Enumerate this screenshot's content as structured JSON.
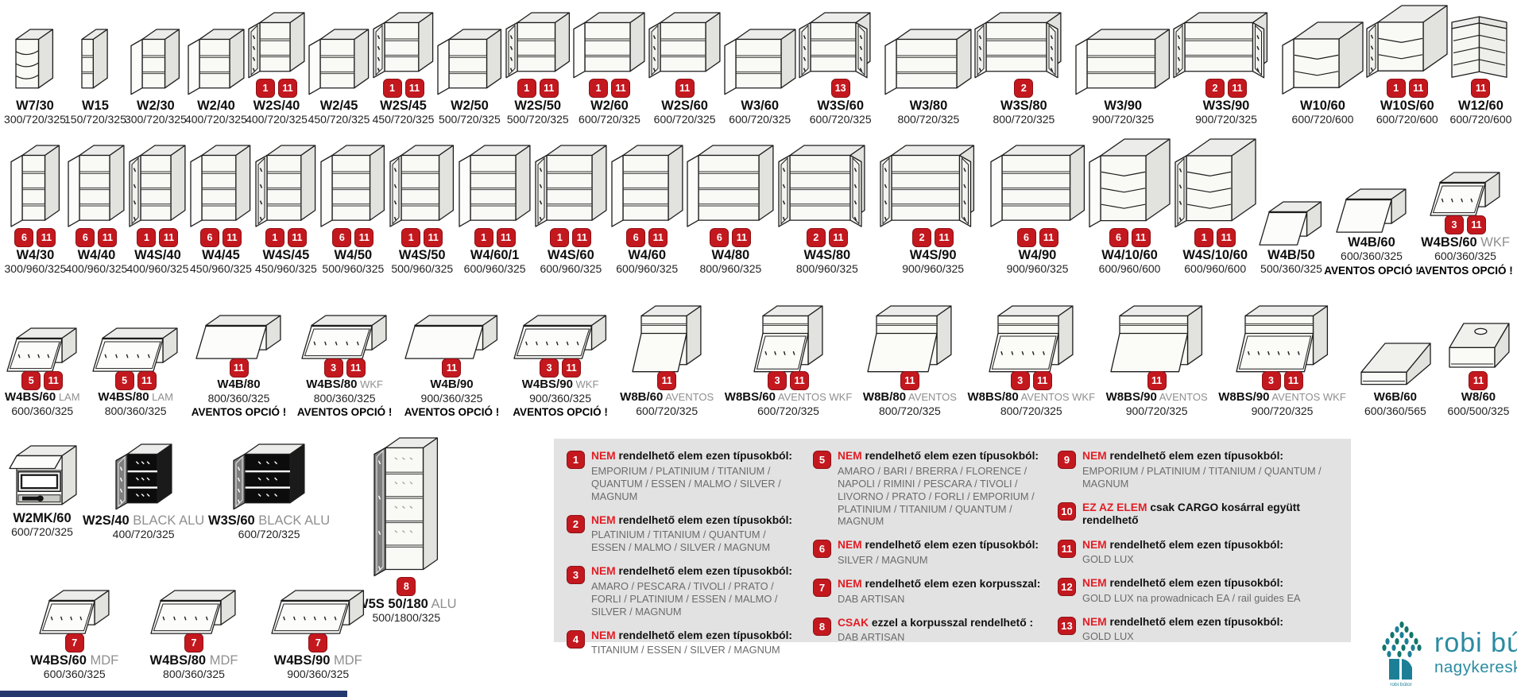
{
  "colors": {
    "badge_red": "#c4181f",
    "accent_red": "#e21d25",
    "legend_bg": "#e2e2e2",
    "logo_teal": "#2a8ba1",
    "footer_navy": "#25386e"
  },
  "rows": [
    {
      "id": "row1",
      "items": [
        {
          "code": "W7/30",
          "suffix": "",
          "dims": "300/720/325",
          "badges": [],
          "shape": "corner-open",
          "note": ""
        },
        {
          "code": "W15",
          "suffix": "",
          "dims": "150/720/325",
          "badges": [],
          "shape": "open",
          "note": ""
        },
        {
          "code": "W2/30",
          "suffix": "",
          "dims": "300/720/325",
          "badges": [],
          "shape": "door",
          "note": ""
        },
        {
          "code": "W2/40",
          "suffix": "",
          "dims": "400/720/325",
          "badges": [],
          "shape": "door",
          "note": ""
        },
        {
          "code": "W2S/40",
          "suffix": "",
          "dims": "400/720/325",
          "badges": [
            "1",
            "11"
          ],
          "shape": "glass",
          "note": ""
        },
        {
          "code": "W2/45",
          "suffix": "",
          "dims": "450/720/325",
          "badges": [],
          "shape": "door",
          "note": ""
        },
        {
          "code": "W2S/45",
          "suffix": "",
          "dims": "450/720/325",
          "badges": [
            "1",
            "11"
          ],
          "shape": "glass",
          "note": ""
        },
        {
          "code": "W2/50",
          "suffix": "",
          "dims": "500/720/325",
          "badges": [],
          "shape": "door",
          "note": ""
        },
        {
          "code": "W2S/50",
          "suffix": "",
          "dims": "500/720/325",
          "badges": [
            "1",
            "11"
          ],
          "shape": "glass",
          "note": ""
        },
        {
          "code": "W2/60",
          "suffix": "",
          "dims": "600/720/325",
          "badges": [
            "1",
            "11"
          ],
          "shape": "door",
          "note": ""
        },
        {
          "code": "W2S/60",
          "suffix": "",
          "dims": "600/720/325",
          "badges": [
            "11"
          ],
          "shape": "glass",
          "note": ""
        },
        {
          "code": "W3/60",
          "suffix": "",
          "dims": "600/720/325",
          "badges": [],
          "shape": "door",
          "note": ""
        },
        {
          "code": "W3S/60",
          "suffix": "",
          "dims": "600/720/325",
          "badges": [
            "13"
          ],
          "shape": "glass2",
          "note": ""
        },
        {
          "code": "W3/80",
          "suffix": "",
          "dims": "800/720/325",
          "badges": [],
          "shape": "door",
          "note": ""
        },
        {
          "code": "W3S/80",
          "suffix": "",
          "dims": "800/720/325",
          "badges": [
            "2"
          ],
          "shape": "glass2",
          "note": ""
        },
        {
          "code": "W3/90",
          "suffix": "",
          "dims": "900/720/325",
          "badges": [],
          "shape": "door",
          "note": ""
        },
        {
          "code": "W3S/90",
          "suffix": "",
          "dims": "900/720/325",
          "badges": [
            "2",
            "11"
          ],
          "shape": "glass2",
          "note": ""
        },
        {
          "code": "W10/60",
          "suffix": "",
          "dims": "600/720/600",
          "badges": [],
          "shape": "corner-door",
          "note": ""
        },
        {
          "code": "W10S/60",
          "suffix": "",
          "dims": "600/720/600",
          "badges": [
            "1",
            "11"
          ],
          "shape": "corner-glass",
          "note": ""
        },
        {
          "code": "W12/60",
          "suffix": "",
          "dims": "600/720/600",
          "badges": [
            "11"
          ],
          "shape": "corner-L",
          "note": ""
        }
      ]
    },
    {
      "id": "row2",
      "items": [
        {
          "code": "W4/30",
          "suffix": "",
          "dims": "300/960/325",
          "badges": [
            "6",
            "11"
          ],
          "shape": "door",
          "note": ""
        },
        {
          "code": "W4/40",
          "suffix": "",
          "dims": "400/960/325",
          "badges": [
            "6",
            "11"
          ],
          "shape": "door",
          "note": ""
        },
        {
          "code": "W4S/40",
          "suffix": "",
          "dims": "400/960/325",
          "badges": [
            "1",
            "11"
          ],
          "shape": "glass",
          "note": ""
        },
        {
          "code": "W4/45",
          "suffix": "",
          "dims": "450/960/325",
          "badges": [
            "6",
            "11"
          ],
          "shape": "door",
          "note": ""
        },
        {
          "code": "W4S/45",
          "suffix": "",
          "dims": "450/960/325",
          "badges": [
            "1",
            "11"
          ],
          "shape": "glass",
          "note": ""
        },
        {
          "code": "W4/50",
          "suffix": "",
          "dims": "500/960/325",
          "badges": [
            "6",
            "11"
          ],
          "shape": "door",
          "note": ""
        },
        {
          "code": "W4S/50",
          "suffix": "",
          "dims": "500/960/325",
          "badges": [
            "1",
            "11"
          ],
          "shape": "glass",
          "note": ""
        },
        {
          "code": "W4/60/1",
          "suffix": "",
          "dims": "600/960/325",
          "badges": [
            "1",
            "11"
          ],
          "shape": "door",
          "note": ""
        },
        {
          "code": "W4S/60",
          "suffix": "",
          "dims": "600/960/325",
          "badges": [
            "1",
            "11"
          ],
          "shape": "glass",
          "note": ""
        },
        {
          "code": "W4/60",
          "suffix": "",
          "dims": "600/960/325",
          "badges": [
            "6",
            "11"
          ],
          "shape": "door",
          "note": ""
        },
        {
          "code": "W4/80",
          "suffix": "",
          "dims": "800/960/325",
          "badges": [
            "6",
            "11"
          ],
          "shape": "door",
          "note": ""
        },
        {
          "code": "W4S/80",
          "suffix": "",
          "dims": "800/960/325",
          "badges": [
            "2",
            "11"
          ],
          "shape": "glass2",
          "note": ""
        },
        {
          "code": "W4S/90",
          "suffix": "",
          "dims": "900/960/325",
          "badges": [
            "2",
            "11"
          ],
          "shape": "glass2",
          "note": ""
        },
        {
          "code": "W4/90",
          "suffix": "",
          "dims": "900/960/325",
          "badges": [
            "6",
            "11"
          ],
          "shape": "door",
          "note": ""
        },
        {
          "code": "W4/10/60",
          "suffix": "",
          "dims": "600/960/600",
          "badges": [
            "6",
            "11"
          ],
          "shape": "corner-door",
          "note": ""
        },
        {
          "code": "W4S/10/60",
          "suffix": "",
          "dims": "600/960/600",
          "badges": [
            "1",
            "11"
          ],
          "shape": "corner-glass",
          "note": ""
        },
        {
          "code": "W4B/50",
          "suffix": "",
          "dims": "500/360/325",
          "badges": [],
          "shape": "flap",
          "note": ""
        },
        {
          "code": "W4B/60",
          "suffix": "",
          "dims": "600/360/325",
          "badges": [],
          "shape": "flap",
          "note": "AVENTOS OPCIÓ !"
        },
        {
          "code": "W4BS/60",
          "suffix": "WKF",
          "dims": "600/360/325",
          "badges": [
            "3",
            "11"
          ],
          "shape": "flap-glass",
          "note": "AVENTOS OPCIÓ !"
        }
      ]
    },
    {
      "id": "row3",
      "items": [
        {
          "code": "W4BS/60",
          "suffix": "LAM",
          "dims": "600/360/325",
          "badges": [
            "5",
            "11"
          ],
          "shape": "flap-glass",
          "note": ""
        },
        {
          "code": "W4BS/80",
          "suffix": "LAM",
          "dims": "800/360/325",
          "badges": [
            "5",
            "11"
          ],
          "shape": "flap-glass",
          "note": ""
        },
        {
          "code": "W4B/80",
          "suffix": "",
          "dims": "800/360/325",
          "badges": [
            "11"
          ],
          "shape": "flap",
          "note": "AVENTOS OPCIÓ !"
        },
        {
          "code": "W4BS/80",
          "suffix": "WKF",
          "dims": "800/360/325",
          "badges": [
            "3",
            "11"
          ],
          "shape": "flap-glass",
          "note": "AVENTOS OPCIÓ !"
        },
        {
          "code": "W4B/90",
          "suffix": "",
          "dims": "900/360/325",
          "badges": [
            "11"
          ],
          "shape": "flap",
          "note": "AVENTOS OPCIÓ !"
        },
        {
          "code": "W4BS/90",
          "suffix": "WKF",
          "dims": "900/360/325",
          "badges": [
            "3",
            "11"
          ],
          "shape": "flap-glass",
          "note": "AVENTOS OPCIÓ !"
        },
        {
          "code": "W8B/60",
          "suffix": "AVENTOS",
          "dims": "600/720/325",
          "badges": [
            "11"
          ],
          "shape": "aventos",
          "note": ""
        },
        {
          "code": "W8BS/60",
          "suffix": "AVENTOS WKF",
          "dims": "600/720/325",
          "badges": [
            "3",
            "11"
          ],
          "shape": "aventos-glass",
          "note": ""
        },
        {
          "code": "W8B/80",
          "suffix": "AVENTOS",
          "dims": "800/720/325",
          "badges": [
            "11"
          ],
          "shape": "aventos",
          "note": ""
        },
        {
          "code": "W8BS/80",
          "suffix": "AVENTOS WKF",
          "dims": "800/720/325",
          "badges": [
            "3",
            "11"
          ],
          "shape": "aventos-glass",
          "note": ""
        },
        {
          "code": "W8BS/90",
          "suffix": "AVENTOS",
          "dims": "900/720/325",
          "badges": [
            "11"
          ],
          "shape": "aventos",
          "note": ""
        },
        {
          "code": "W8BS/90",
          "suffix": "AVENTOS WKF",
          "dims": "900/720/325",
          "badges": [
            "3",
            "11"
          ],
          "shape": "aventos-glass",
          "note": ""
        },
        {
          "code": "W6B/60",
          "suffix": "",
          "dims": "600/360/565",
          "badges": [],
          "shape": "hood",
          "note": ""
        },
        {
          "code": "W8/60",
          "suffix": "",
          "dims": "600/500/325",
          "badges": [
            "11"
          ],
          "shape": "hood-top",
          "note": ""
        }
      ]
    },
    {
      "id": "row4",
      "items": [
        {
          "code": "W2MK/60",
          "suffix": "",
          "dims": "600/720/325",
          "badges": [],
          "shape": "microwave",
          "note": ""
        },
        {
          "code": "W2S/40",
          "suffix": "BLACK ALU",
          "dims": "400/720/325",
          "badges": [],
          "shape": "black-glass",
          "note": ""
        },
        {
          "code": "W3S/60",
          "suffix": "BLACK ALU",
          "dims": "600/720/325",
          "badges": [],
          "shape": "black-glass",
          "note": ""
        },
        {
          "code": "W5S 50/180",
          "suffix": "ALU",
          "dims": "500/1800/325",
          "badges": [
            "8"
          ],
          "shape": "tall-glass",
          "note": ""
        }
      ]
    },
    {
      "id": "row5",
      "items": [
        {
          "code": "W4BS/60",
          "suffix": "MDF",
          "dims": "600/360/325",
          "badges": [
            "7"
          ],
          "shape": "flap-glass",
          "note": ""
        },
        {
          "code": "W4BS/80",
          "suffix": "MDF",
          "dims": "800/360/325",
          "badges": [
            "7"
          ],
          "shape": "flap-glass",
          "note": ""
        },
        {
          "code": "W4BS/90",
          "suffix": "MDF",
          "dims": "900/360/325",
          "badges": [
            "7"
          ],
          "shape": "flap-glass",
          "note": ""
        }
      ]
    }
  ],
  "legend": {
    "columns": [
      {
        "notes": [
          {
            "num": "1",
            "keyword": "NEM",
            "heading": "rendelhető elem ezen típusokból:",
            "detail": "EMPORIUM / PLATINIUM / TITANIUM / QUANTUM / ESSEN / MALMO / SILVER / MAGNUM"
          },
          {
            "num": "2",
            "keyword": "NEM",
            "heading": "rendelhető elem ezen típusokból:",
            "detail": "PLATINIUM / TITANIUM / QUANTUM / ESSEN / MALMO / SILVER / MAGNUM"
          },
          {
            "num": "3",
            "keyword": "NEM",
            "heading": "rendelhető elem ezen típusokból:",
            "detail": "AMARO / PESCARA / TIVOLI / PRATO / FORLI / PLATINIUM / ESSEN / MALMO / SILVER / MAGNUM"
          },
          {
            "num": "4",
            "keyword": "NEM",
            "heading": "rendelhető elem ezen típusokból:",
            "detail": "TITANIUM /  ESSEN / SILVER / MAGNUM"
          }
        ]
      },
      {
        "notes": [
          {
            "num": "5",
            "keyword": "NEM",
            "heading": "rendelhető elem ezen típusokból:",
            "detail": "AMARO / BARI / BRERRA / FLORENCE / NAPOLI / RIMINI / PESCARA / TIVOLI / LIVORNO / PRATO / FORLI / EMPORIUM / PLATINIUM / TITANIUM / QUANTUM / MAGNUM"
          },
          {
            "num": "6",
            "keyword": "NEM",
            "heading": "rendelhető elem ezen típusokból:",
            "detail": "SILVER / MAGNUM"
          },
          {
            "num": "7",
            "keyword": "NEM",
            "heading": "rendelhető elem ezen korpusszal:",
            "detail": "DAB ARTISAN"
          },
          {
            "num": "8",
            "keyword": "CSAK",
            "heading": "ezzel a korpusszal rendelhető :",
            "detail": "DAB ARTISAN"
          }
        ]
      },
      {
        "notes": [
          {
            "num": "9",
            "keyword": "NEM",
            "heading": "rendelhető elem ezen típusokból:",
            "detail": "EMPORIUM / PLATINIUM / TITANIUM / QUANTUM / MAGNUM"
          },
          {
            "num": "10",
            "keyword": "EZ AZ ELEM",
            "heading": "csak CARGO kosárral  együtt rendelhető",
            "detail": ""
          },
          {
            "num": "11",
            "keyword": "NEM",
            "heading": "rendelhető elem ezen típusokból:",
            "detail": "GOLD LUX"
          },
          {
            "num": "12",
            "keyword": "NEM",
            "heading": "rendelhető elem ezen típusokból:",
            "detail": "GOLD LUX na prowadnicach EA / rail guides EA"
          },
          {
            "num": "13",
            "keyword": "NEM",
            "heading": "rendelhető elem ezen típusokból:",
            "detail": "GOLD LUX"
          }
        ]
      }
    ]
  },
  "logo": {
    "line1": "robi bútor",
    "line2": "nagykereskedés",
    "caption": "robi bútor"
  }
}
